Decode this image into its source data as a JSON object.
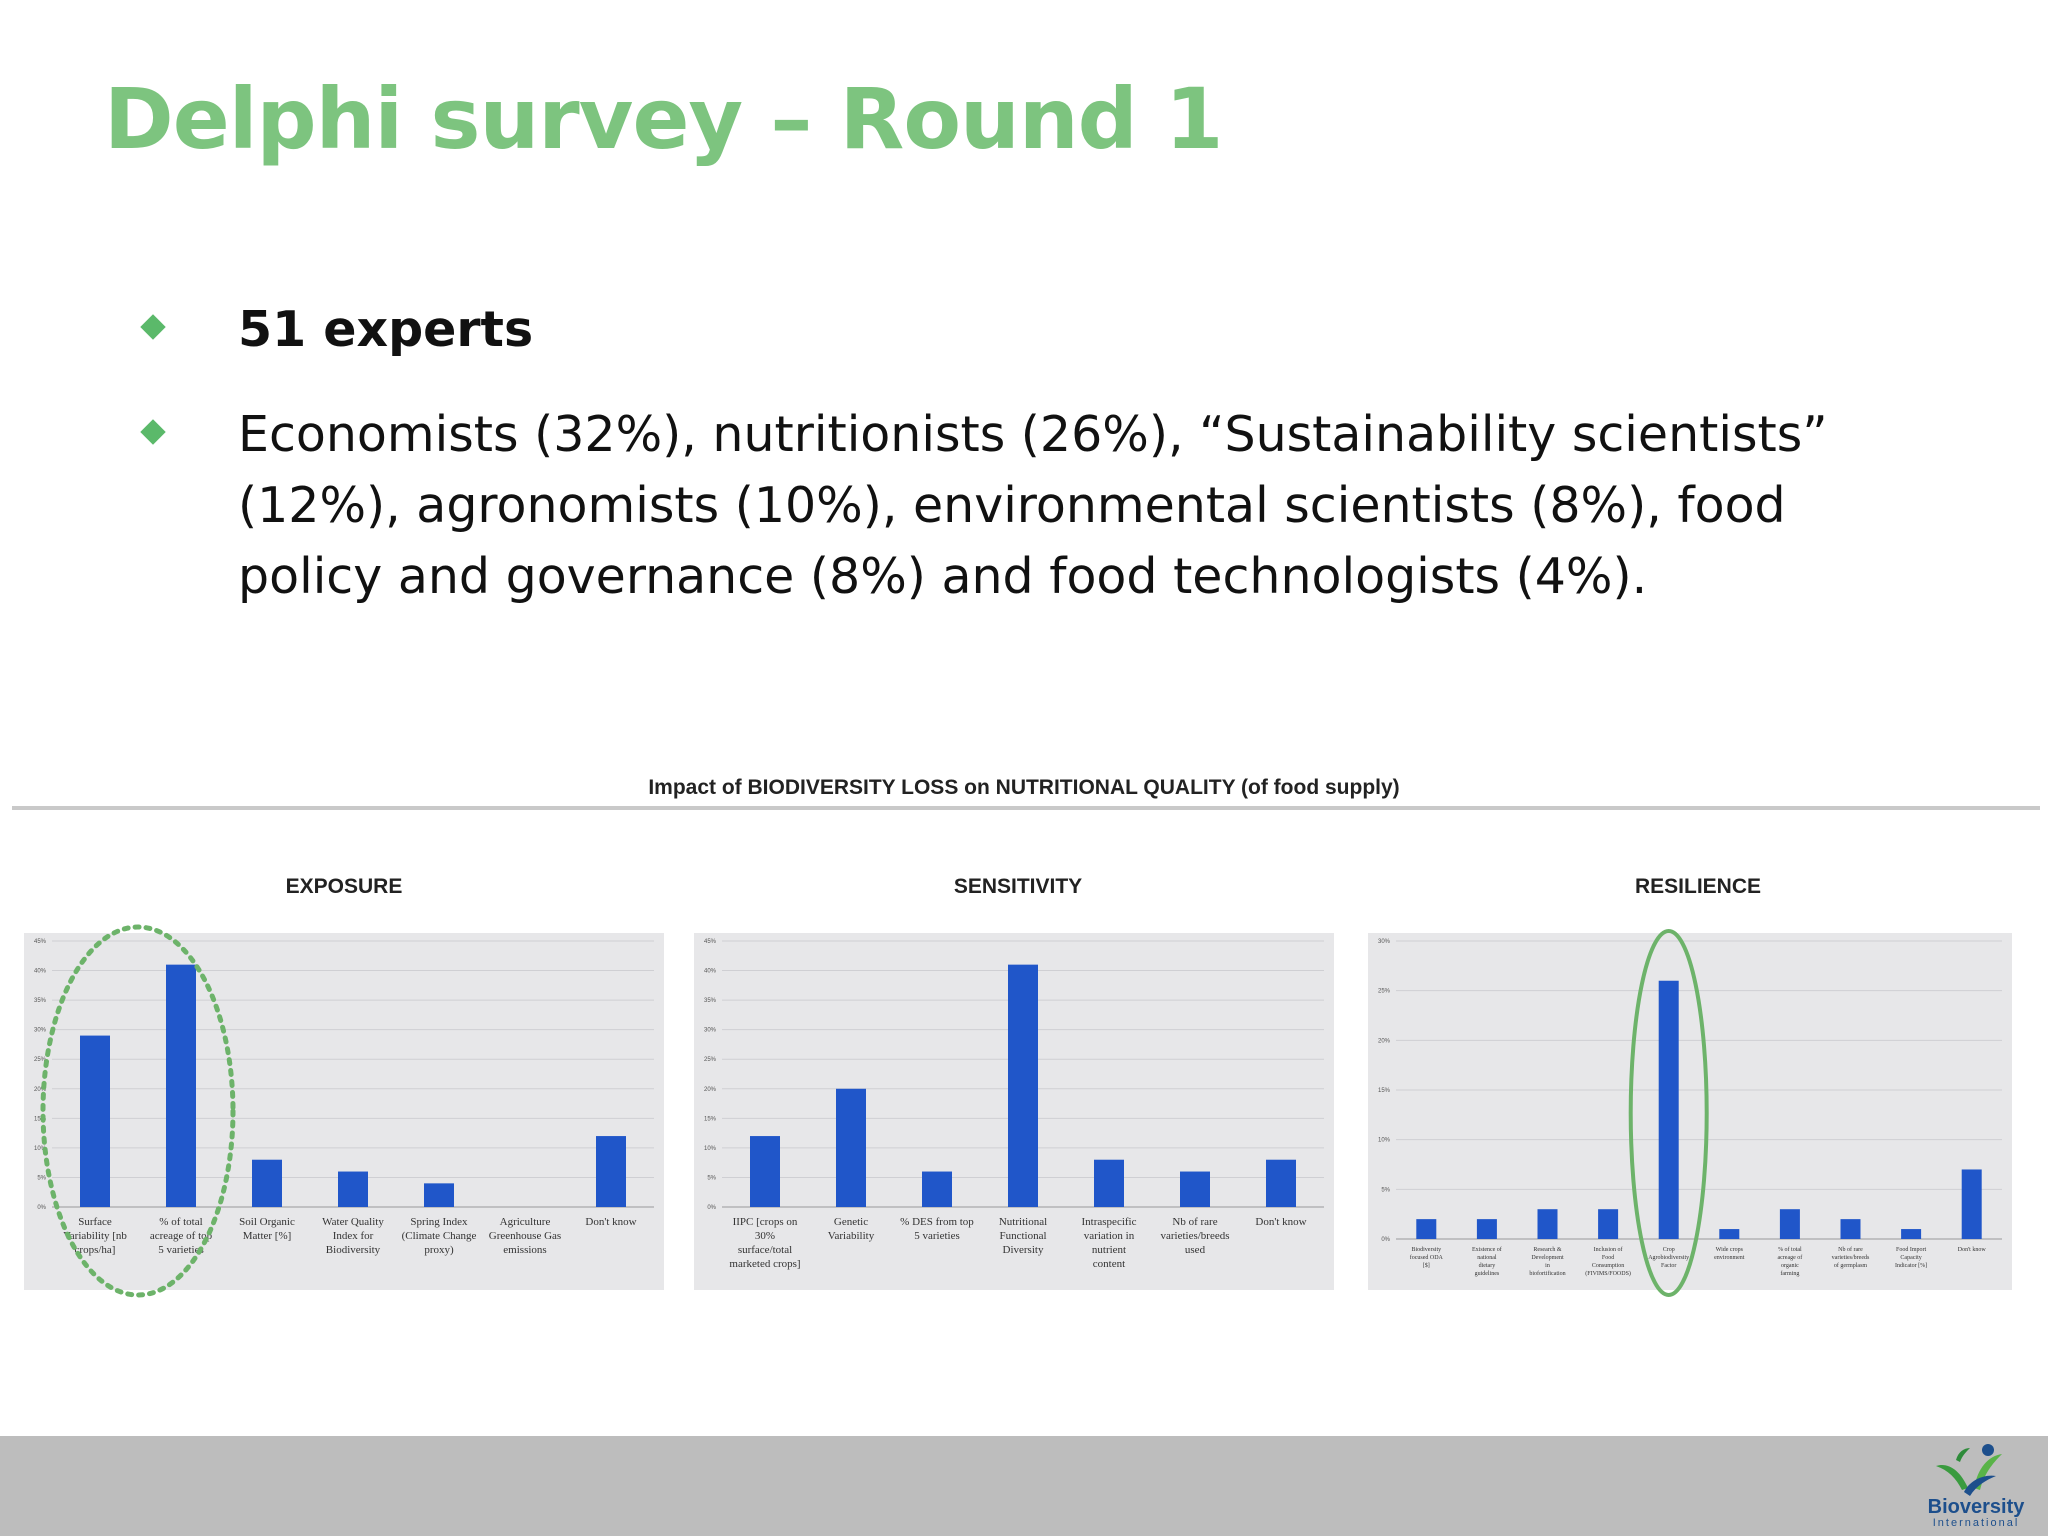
{
  "slide": {
    "title": "Delphi survey – Round 1",
    "bullets": [
      {
        "text": "51 experts",
        "bold": true
      },
      {
        "text": "Economists (32%), nutritionists (26%), “Sustainability scientists” (12%), agronomists (10%), environmental scientists (8%), food policy and governance (8%) and food technologists (4%).",
        "bold": false
      }
    ]
  },
  "colors": {
    "title": "#7dc47f",
    "bullet": "#5bb96a",
    "bar": "#2056c9",
    "plot_bg": "#e7e7e9",
    "highlight": "#6db36a"
  },
  "figure": {
    "title": "Impact of BIODIVERSITY LOSS on NUTRITIONAL QUALITY (of food supply)"
  },
  "logo": {
    "name": "Bioversity",
    "sub": "International",
    "icon": "bioversity-logo-icon"
  },
  "chart_data": [
    {
      "type": "bar",
      "title": "EXPOSURE",
      "categories": [
        "Surface Variability [nb crops/ha]",
        "% of total acreage of top 5 varieties",
        "Soil Organic Matter [%]",
        "Water Quality Index for Biodiversity",
        "Spring Index (Climate Change proxy)",
        "Agriculture Greenhouse Gas emissions",
        "Don't know"
      ],
      "values": [
        29,
        41,
        8,
        6,
        4,
        0,
        12
      ],
      "ylim": [
        0,
        45
      ],
      "yticks": [
        "0%",
        "5%",
        "10%",
        "15%",
        "20%",
        "25%",
        "30%",
        "35%",
        "40%",
        "45%"
      ],
      "highlight": {
        "categories": [
          0,
          1
        ],
        "style": "dotted-ellipse"
      },
      "grid": true
    },
    {
      "type": "bar",
      "title": "SENSITIVITY",
      "categories": [
        "IIPC [crops on 30% surface/total marketed crops]",
        "Genetic Variability",
        "% DES from top 5 varieties",
        "Nutritional Functional Diversity",
        "Intraspecific variation in nutrient content",
        "Nb of rare varieties/breeds used",
        "Don't know"
      ],
      "values": [
        12,
        20,
        6,
        41,
        8,
        6,
        8
      ],
      "ylim": [
        0,
        45
      ],
      "yticks": [
        "0%",
        "5%",
        "10%",
        "15%",
        "20%",
        "25%",
        "30%",
        "35%",
        "40%",
        "45%"
      ],
      "grid": true
    },
    {
      "type": "bar",
      "title": "RESILIENCE",
      "categories": [
        "Biodiversity focused ODA [$]",
        "Existence of national dietary guidelines",
        "Research & Development in biofortification",
        "Inclusion of Food Consumption (FIVIMS/FOODS)",
        "Crop Agrobiodiversity Factor",
        "Wide crops environment",
        "% of total acreage of organic farming",
        "Nb of rare varieties/breeds of germplasm",
        "Food Import Capacity Indicator [%]",
        "Don't know"
      ],
      "values": [
        2,
        2,
        3,
        3,
        26,
        1,
        3,
        2,
        1,
        7
      ],
      "ylim": [
        0,
        30
      ],
      "yticks": [
        "0%",
        "5%",
        "10%",
        "15%",
        "20%",
        "25%",
        "30%"
      ],
      "highlight": {
        "categories": [
          4
        ],
        "style": "solid-ellipse"
      },
      "grid": true
    }
  ]
}
